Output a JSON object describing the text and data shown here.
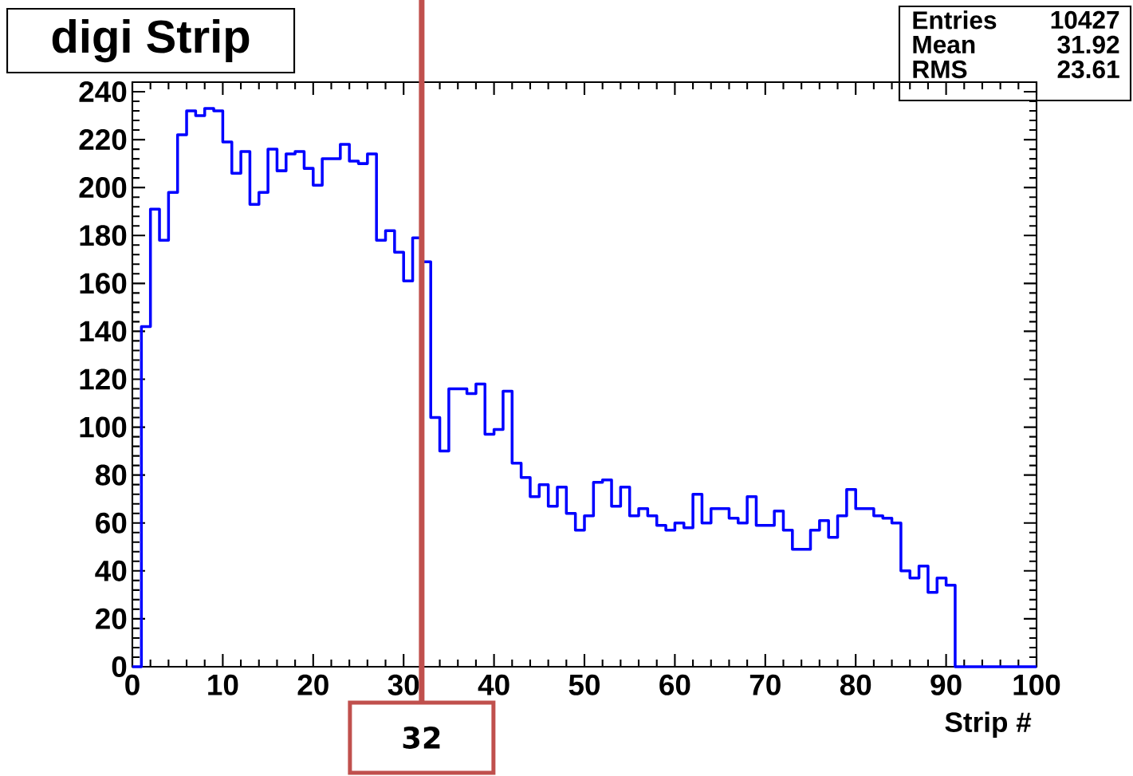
{
  "chart_data": {
    "type": "histogram",
    "title": "digi Strip",
    "xlabel": "Strip #",
    "bins": [
      0,
      1,
      2,
      3,
      4,
      5,
      6,
      7,
      8,
      9,
      10,
      11,
      12,
      13,
      14,
      15,
      16,
      17,
      18,
      19,
      20,
      21,
      22,
      23,
      24,
      25,
      26,
      27,
      28,
      29,
      30,
      31,
      32,
      33,
      34,
      35,
      36,
      37,
      38,
      39,
      40,
      41,
      42,
      43,
      44,
      45,
      46,
      47,
      48,
      49,
      50,
      51,
      52,
      53,
      54,
      55,
      56,
      57,
      58,
      59,
      60,
      61,
      62,
      63,
      64,
      65,
      66,
      67,
      68,
      69,
      70,
      71,
      72,
      73,
      74,
      75,
      76,
      77,
      78,
      79,
      80,
      81,
      82,
      83,
      84,
      85,
      86,
      87,
      88,
      89,
      90,
      91,
      92,
      93,
      94,
      95,
      96,
      97,
      98,
      99,
      100
    ],
    "values": [
      0,
      142,
      191,
      178,
      198,
      222,
      232,
      230,
      233,
      232,
      219,
      206,
      215,
      193,
      198,
      216,
      207,
      214,
      215,
      208,
      201,
      212,
      212,
      218,
      211,
      210,
      214,
      178,
      182,
      173,
      161,
      179,
      169,
      104,
      90,
      116,
      116,
      114,
      118,
      97,
      99,
      115,
      85,
      79,
      71,
      76,
      67,
      75,
      64,
      57,
      63,
      77,
      78,
      67,
      75,
      63,
      66,
      63,
      59,
      57,
      60,
      58,
      72,
      60,
      66,
      66,
      62,
      60,
      71,
      59,
      59,
      65,
      57,
      49,
      49,
      57,
      61,
      54,
      63,
      74,
      66,
      66,
      63,
      62,
      60,
      40,
      37,
      42,
      31,
      37,
      34,
      0,
      0,
      0,
      0,
      0,
      0,
      0,
      0,
      0
    ],
    "color": "#0000ff",
    "xlim": [
      0,
      100
    ],
    "xticks": [
      0,
      10,
      20,
      30,
      40,
      50,
      60,
      70,
      80,
      90,
      100
    ],
    "ylim": [
      0,
      244
    ],
    "yticks": [
      0,
      20,
      40,
      60,
      80,
      100,
      120,
      140,
      160,
      180,
      200,
      220,
      240
    ],
    "ref_lines": [
      {
        "axis": "x",
        "value": 32,
        "label": "32",
        "color": "#c0504d"
      }
    ],
    "annotations": [
      "Entries",
      "10427",
      "Mean",
      "31.92",
      "RMS",
      "23.61"
    ]
  }
}
